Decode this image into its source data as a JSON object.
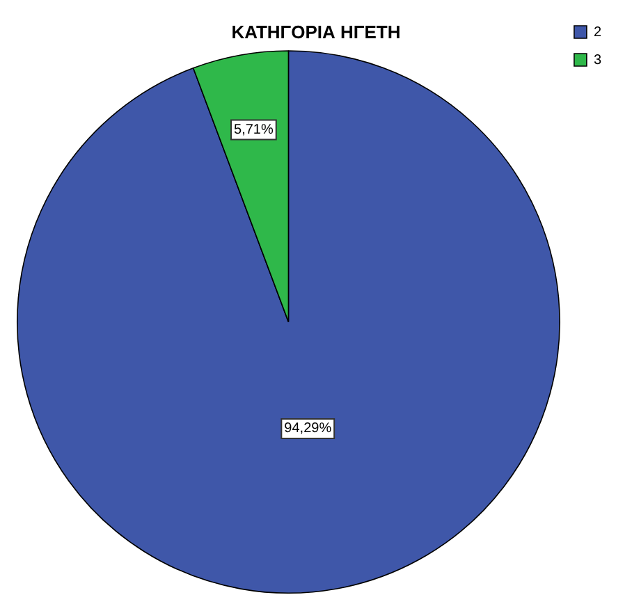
{
  "chart_data": {
    "type": "pie",
    "title": "ΚΑΤΗΓΟΡΙΑ ΗΓΕΤΗ",
    "categories": [
      "2",
      "3"
    ],
    "values": [
      94.29,
      5.71
    ],
    "colors": [
      "#3f57a9",
      "#2fb84a"
    ],
    "value_labels": [
      "94,29%",
      "5,71%"
    ],
    "legend": "top right"
  }
}
